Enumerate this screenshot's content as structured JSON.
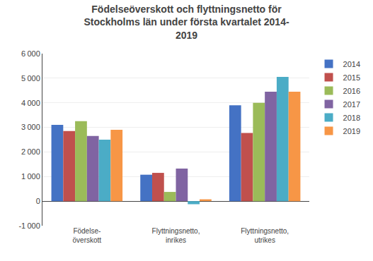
{
  "chart_data": {
    "type": "bar",
    "title": "Födelseöverskott och flyttningsnetto för\nStockholms län under första kvartalet 2014-\n2019",
    "categories": [
      "Födelse-\növerskott",
      "Flyttningsnetto,\ninrikes",
      "Flyttningsnetto,\nutrikes"
    ],
    "series": [
      {
        "name": "2014",
        "color": "#4472C4",
        "values": [
          3100,
          1075,
          3900
        ]
      },
      {
        "name": "2015",
        "color": "#C0504D",
        "values": [
          2850,
          1150,
          2775
        ]
      },
      {
        "name": "2016",
        "color": "#9BBB59",
        "values": [
          3250,
          375,
          4000
        ]
      },
      {
        "name": "2017",
        "color": "#8064A2",
        "values": [
          2650,
          1325,
          4450
        ]
      },
      {
        "name": "2018",
        "color": "#4BACC6",
        "values": [
          2500,
          -125,
          5050
        ]
      },
      {
        "name": "2019",
        "color": "#F79646",
        "values": [
          2900,
          75,
          4450
        ]
      }
    ],
    "ylim": [
      -1000,
      6000
    ],
    "yticks": [
      {
        "value": -1000,
        "label": "-1 000"
      },
      0,
      {
        "value": 1000,
        "label": "1 000"
      },
      {
        "value": 2000,
        "label": "2 000"
      },
      {
        "value": 3000,
        "label": "3 000"
      },
      {
        "value": 4000,
        "label": "4 000"
      },
      {
        "value": 5000,
        "label": "5 000"
      },
      {
        "value": 6000,
        "label": "6 000"
      }
    ],
    "grid": true,
    "legend": "upper right"
  }
}
